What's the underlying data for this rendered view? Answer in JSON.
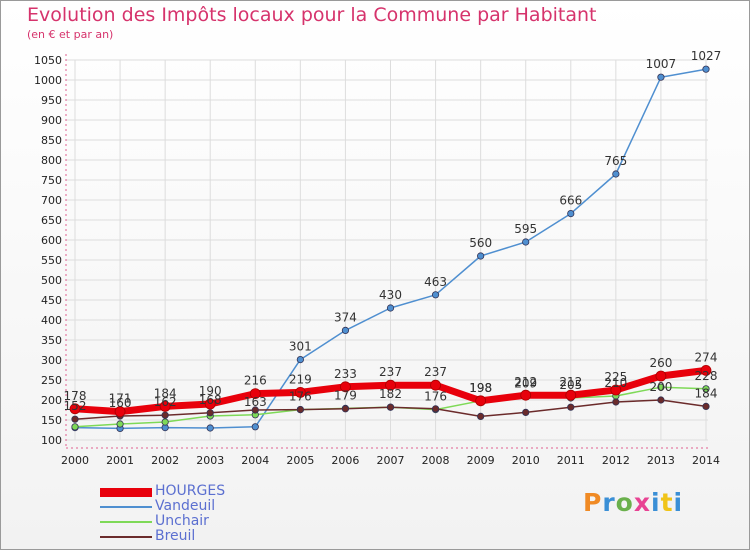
{
  "header": {
    "title": "Evolution des Impôts locaux pour la Commune par Habitant",
    "subtitle": "(en € et par an)"
  },
  "logo": {
    "text": "Proxiti",
    "colors": [
      "#f08a24",
      "#3a8fd6",
      "#6ab04c",
      "#e84393",
      "#3a8fd6",
      "#f0c419",
      "#3a8fd6"
    ]
  },
  "colors": {
    "accent": "#d6336c",
    "legend_text": "#5b6fd0",
    "grid": "#dddddd"
  },
  "chart_data": {
    "type": "line",
    "title": "Evolution des Impôts locaux pour la Commune par Habitant",
    "subtitle": "(en € et par an)",
    "xlabel": "",
    "ylabel": "",
    "x": [
      "2000",
      "2001",
      "2002",
      "2003",
      "2004",
      "2005",
      "2006",
      "2007",
      "2008",
      "2009",
      "2010",
      "2011",
      "2012",
      "2013",
      "2014"
    ],
    "ylim": [
      100,
      1050
    ],
    "yticks": [
      100,
      150,
      200,
      250,
      300,
      350,
      400,
      450,
      500,
      550,
      600,
      650,
      700,
      750,
      800,
      850,
      900,
      950,
      1000,
      1050
    ],
    "grid": true,
    "legend_position": "bottom-left",
    "series": [
      {
        "name": "HOURGES",
        "color": "#e8000b",
        "values": [
          178,
          171,
          184,
          190,
          216,
          219,
          233,
          237,
          237,
          198,
          212,
          212,
          225,
          260,
          274
        ],
        "labels": [
          "178",
          "171",
          "184",
          "190",
          "216",
          "219",
          "233",
          "237",
          "237",
          "198",
          "212",
          "212",
          "225",
          "260",
          "274"
        ]
      },
      {
        "name": "Vandeuil",
        "color": "#4f8fd0",
        "values": [
          131,
          129,
          131,
          130,
          133,
          301,
          374,
          430,
          463,
          560,
          595,
          666,
          765,
          1007,
          1027
        ],
        "labels": [
          "",
          "",
          "",
          "",
          "",
          "301",
          "374",
          "430",
          "463",
          "560",
          "595",
          "666",
          "765",
          "1007",
          "1027"
        ]
      },
      {
        "name": "Unchair",
        "color": "#7ed957",
        "values": [
          133,
          140,
          145,
          160,
          163,
          176,
          179,
          182,
          176,
          198,
          209,
          205,
          210,
          232,
          228
        ],
        "labels": [
          "",
          "",
          "",
          "",
          "163",
          "176",
          "179",
          "182",
          "176",
          "198",
          "209",
          "205",
          "210",
          "",
          "228"
        ]
      },
      {
        "name": "Breuil",
        "color": "#6b2b2b",
        "values": [
          152,
          160,
          162,
          168,
          175,
          176,
          178,
          182,
          178,
          159,
          169,
          182,
          195,
          200,
          184
        ],
        "labels": [
          "152",
          "160",
          "162",
          "168",
          "",
          "",
          "",
          "",
          "",
          "",
          "",
          "",
          "",
          "200",
          "184"
        ]
      }
    ]
  }
}
